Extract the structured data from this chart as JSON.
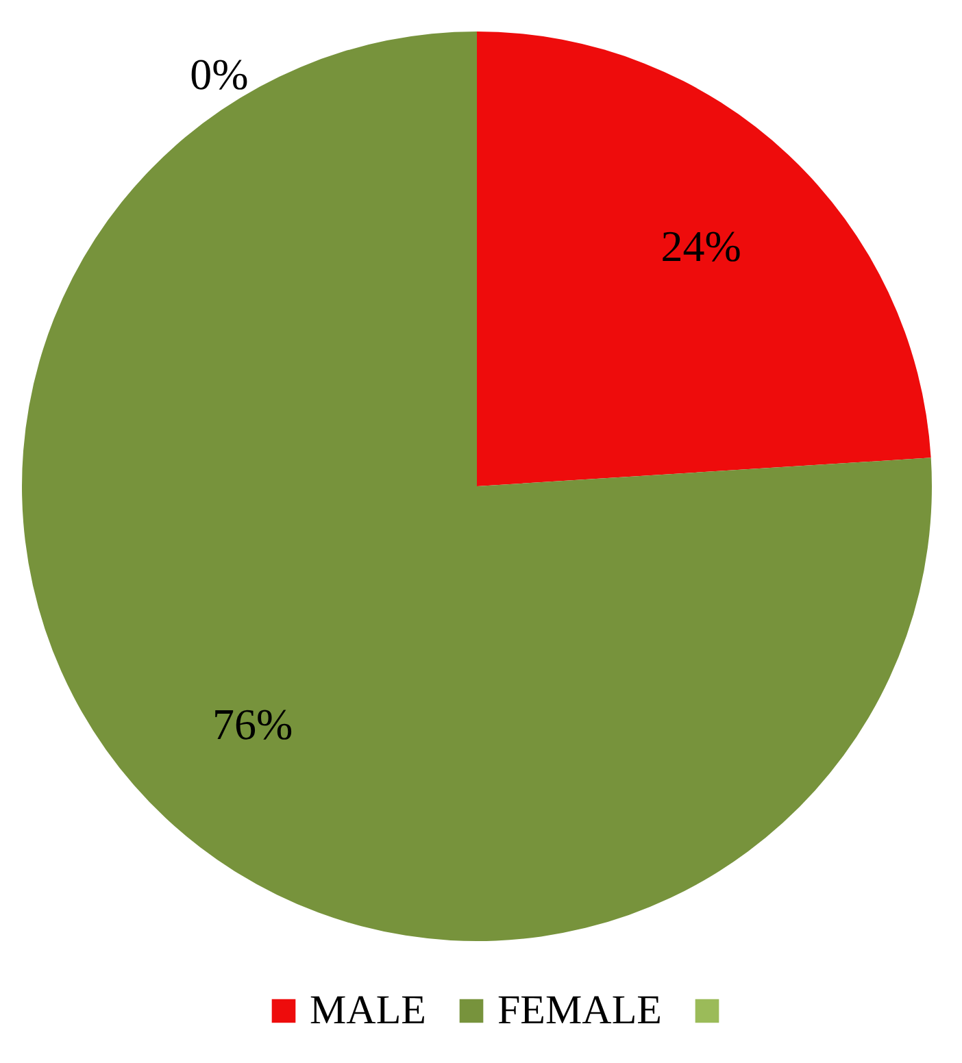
{
  "chart_data": {
    "type": "pie",
    "categories": [
      "MALE",
      "FEMALE",
      null
    ],
    "values": [
      24,
      76,
      0
    ],
    "colors": [
      "#ee0c0c",
      "#77933c",
      "#9bbb59"
    ],
    "value_labels": [
      "24%",
      "76%",
      "0%"
    ],
    "legend": "bottom"
  }
}
